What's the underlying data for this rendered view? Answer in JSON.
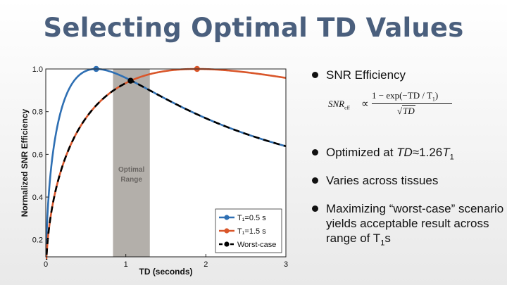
{
  "slide": {
    "title": "Selecting Optimal TD Values"
  },
  "formula": {
    "lhs": "SNR",
    "lhs_sub": "eff",
    "prop": "∝",
    "numerator": "1 − exp(−TD / T",
    "numerator_sub": "1",
    "numerator_end": ")",
    "denominator": "TD",
    "radical": "√"
  },
  "bullets": {
    "b1": "SNR Efficiency",
    "b2_prefix": "Optimized at ",
    "b2_var": "TD",
    "b2_mid": "≈1.26",
    "b2_var2": "T",
    "b2_sub": "1",
    "b3": "Varies across tissues",
    "b4_text": "Maximizing “worst-case” scenario yields acceptable result across range of T",
    "b4_sub": "1",
    "b4_end": "s"
  },
  "colors": {
    "blue": "#2e6fb3",
    "orange": "#d9562a",
    "black": "#000000",
    "band": "#b3afaa",
    "title": "#4a5f7d"
  },
  "chart_data": {
    "type": "line",
    "xlabel": "TD (seconds)",
    "ylabel": "Normalized SNR Efficiency",
    "xlim": [
      0,
      3
    ],
    "ylim": [
      0.12,
      1.0
    ],
    "xticks": [
      0,
      1,
      2,
      3
    ],
    "yticks": [
      0.2,
      0.4,
      0.6,
      0.8,
      1.0
    ],
    "ytick_labels": [
      "0.2",
      "0.4",
      "0.6",
      "0.8",
      "1.0"
    ],
    "optimal_range": [
      0.84,
      1.3
    ],
    "optimal_label": [
      "Optimal",
      "Range"
    ],
    "series": [
      {
        "name": "T₁=0.5 s",
        "T1": 0.5,
        "color": "#2e6fb3",
        "peak": [
          0.63,
          1.0
        ]
      },
      {
        "name": "T₁=1.5 s",
        "T1": 1.5,
        "color": "#d9562a",
        "peak": [
          1.89,
          1.0
        ]
      },
      {
        "name": "Worst-case",
        "color": "#000000",
        "peak": [
          1.06,
          0.945
        ]
      }
    ],
    "legend": [
      "T₁=0.5 s",
      "T₁=1.5 s",
      "Worst-case"
    ],
    "legend_position": "bottom-right"
  }
}
